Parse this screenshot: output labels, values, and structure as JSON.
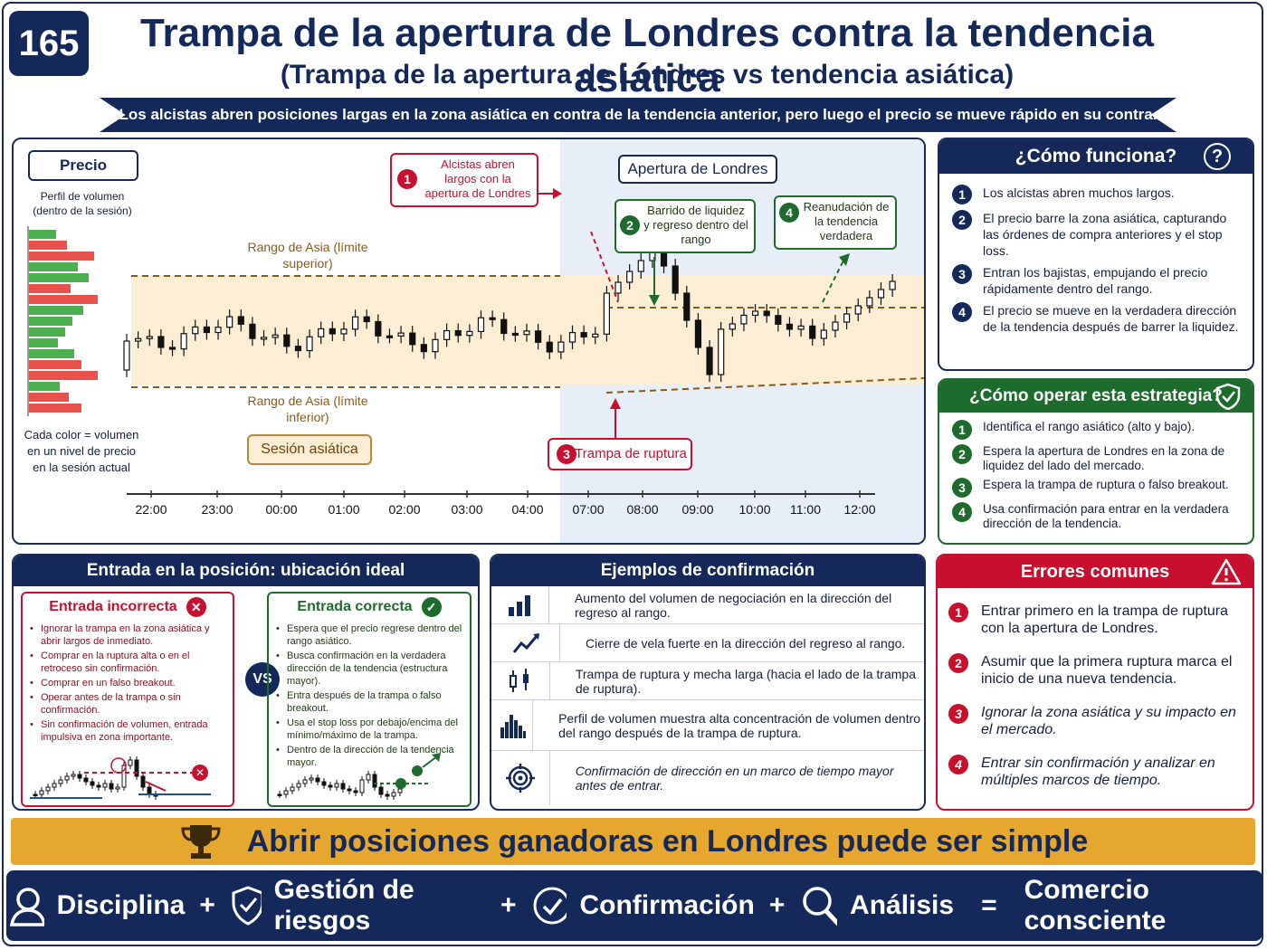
{
  "badge": "165",
  "title": "Trampa de la apertura de Londres contra la tendencia asiática",
  "subtitle": "(Trampa de la apertura de Londres vs tendencia asiática)",
  "ribbon": "Los alcistas abren posiciones largas en la zona asiática en contra de la tendencia anterior, pero luego el precio se mueve rápido en su contra.",
  "chart": {
    "precio_label": "Precio",
    "volume_profile_label": "Perfil de volumen (dentro de la sesión)",
    "volume_note": "Cada color = volumen en un nivel de precio en la sesión actual",
    "asia_upper": "Rango de Asia (límite superior)",
    "asia_lower": "Rango de Asia (límite inferior)",
    "asian_session": "Sesión asiática",
    "london_open": "Apertura de Londres",
    "ann1": "Alcistas abren largos con la apertura de Londres",
    "ann2": "Barrido de liquidez y regreso dentro del rango",
    "ann3": "Trampa de ruptura",
    "ann4": "Reanudación de la tendencia verdadera",
    "times": [
      "22:00",
      "23:00",
      "00:00",
      "01:00",
      "02:00",
      "03:00",
      "04:00",
      "07:00",
      "08:00",
      "09:00",
      "10:00",
      "11:00",
      "12:00"
    ]
  },
  "how": {
    "title": "¿Cómo funciona?",
    "items": [
      "Los alcistas abren muchos largos.",
      "El precio barre la zona asiática, capturando las órdenes de compra anteriores y el stop loss.",
      "Entran los bajistas, empujando el precio rápidamente dentro del rango.",
      "El precio se mueve en la verdadera dirección de la tendencia después de barrer la liquidez."
    ]
  },
  "operate": {
    "title": "¿Cómo operar esta estrategia?",
    "items": [
      "Identifica el rango asiático (alto y bajo).",
      "Espera la apertura de Londres en la zona de liquidez del lado del mercado.",
      "Espera la trampa de ruptura o falso breakout.",
      "Usa confirmación para entrar en la verdadera dirección de la tendencia."
    ]
  },
  "entry": {
    "title": "Entrada en la posición: ubicación ideal",
    "wrong_title": "Entrada incorrecta",
    "wrong_items": [
      "Ignorar la trampa en la zona asiática y abrir largos de inmediato.",
      "Comprar en la ruptura alta o en el retroceso sin confirmación.",
      "Comprar en un falso breakout.",
      "Operar antes de la trampa o sin confirmación.",
      "Sin confirmación de volumen, entrada impulsiva en zona importante."
    ],
    "vs": "VS",
    "right_title": "Entrada correcta",
    "right_items": [
      "Espera que el precio regrese dentro del rango asiático.",
      "Busca confirmación en la verdadera dirección de la tendencia (estructura mayor).",
      "Entra después de la trampa o falso breakout.",
      "Usa el stop loss por debajo/encima del mínimo/máximo de la trampa.",
      "Dentro de la dirección de la tendencia mayor."
    ]
  },
  "confirm": {
    "title": "Ejemplos de confirmación",
    "items": [
      {
        "icon": "bar-chart-icon",
        "text": "Aumento del volumen de negociación en la dirección del regreso al rango."
      },
      {
        "icon": "trend-line-icon",
        "text": "Cierre de vela fuerte en la dirección del regreso al rango."
      },
      {
        "icon": "candles-icon",
        "text": "Trampa de ruptura y mecha larga (hacia el lado de la trampa de ruptura)."
      },
      {
        "icon": "volume-profile-icon",
        "text": "Perfil de volumen muestra alta concentración de volumen dentro del rango después de la trampa de ruptura."
      },
      {
        "icon": "target-icon",
        "text": "Confirmación de dirección en un marco de tiempo mayor antes de entrar."
      }
    ]
  },
  "errors": {
    "title": "Errores comunes",
    "items": [
      "Entrar primero en la trampa de ruptura con la apertura de Londres.",
      "Asumir que la primera ruptura marca el inicio de una nueva tendencia.",
      "Ignorar la zona asiática y su impacto en el mercado.",
      "Entrar sin confirmación y analizar en múltiples marcos de tiempo."
    ]
  },
  "banner": "Abrir posiciones ganadoras en Londres puede ser simple",
  "footer": {
    "disciplina": "Disciplina",
    "riesgos": "Gestión de riesgos",
    "confirmacion": "Confirmación",
    "analisis": "Análisis",
    "resultado": "Comercio consciente",
    "plus": "+",
    "equals": "="
  },
  "colors": {
    "navy": "#15285a",
    "green": "#1e6b2e",
    "red": "#c8102e",
    "gold": "#e6a72e"
  }
}
